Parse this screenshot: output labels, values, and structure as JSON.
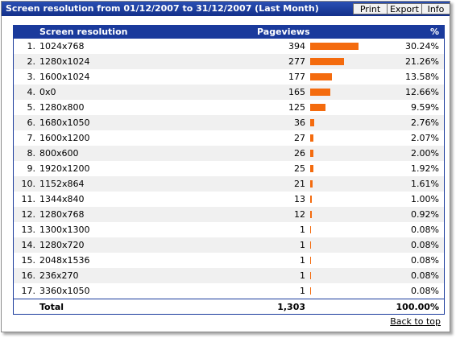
{
  "window": {
    "title": "Screen resolution from 01/12/2007 to 31/12/2007 (Last Month)",
    "buttons": {
      "print": "Print",
      "export": "Export",
      "info": "Info"
    }
  },
  "table": {
    "headers": {
      "resolution": "Screen resolution",
      "pageviews": "Pageviews",
      "percent": "%"
    },
    "bar_color": "#f46b0e",
    "header_color": "#1a3a9c",
    "rows": [
      {
        "index": "1.",
        "resolution": "1024x768",
        "pageviews": "394",
        "percent": "30.24%",
        "value": 394
      },
      {
        "index": "2.",
        "resolution": "1280x1024",
        "pageviews": "277",
        "percent": "21.26%",
        "value": 277
      },
      {
        "index": "3.",
        "resolution": "1600x1024",
        "pageviews": "177",
        "percent": "13.58%",
        "value": 177
      },
      {
        "index": "4.",
        "resolution": "0x0",
        "pageviews": "165",
        "percent": "12.66%",
        "value": 165
      },
      {
        "index": "5.",
        "resolution": "1280x800",
        "pageviews": "125",
        "percent": "9.59%",
        "value": 125
      },
      {
        "index": "6.",
        "resolution": "1680x1050",
        "pageviews": "36",
        "percent": "2.76%",
        "value": 36
      },
      {
        "index": "7.",
        "resolution": "1600x1200",
        "pageviews": "27",
        "percent": "2.07%",
        "value": 27
      },
      {
        "index": "8.",
        "resolution": "800x600",
        "pageviews": "26",
        "percent": "2.00%",
        "value": 26
      },
      {
        "index": "9.",
        "resolution": "1920x1200",
        "pageviews": "25",
        "percent": "1.92%",
        "value": 25
      },
      {
        "index": "10.",
        "resolution": "1152x864",
        "pageviews": "21",
        "percent": "1.61%",
        "value": 21
      },
      {
        "index": "11.",
        "resolution": "1344x840",
        "pageviews": "13",
        "percent": "1.00%",
        "value": 13
      },
      {
        "index": "12.",
        "resolution": "1280x768",
        "pageviews": "12",
        "percent": "0.92%",
        "value": 12
      },
      {
        "index": "13.",
        "resolution": "1300x1300",
        "pageviews": "1",
        "percent": "0.08%",
        "value": 1
      },
      {
        "index": "14.",
        "resolution": "1280x720",
        "pageviews": "1",
        "percent": "0.08%",
        "value": 1
      },
      {
        "index": "15.",
        "resolution": "2048x1536",
        "pageviews": "1",
        "percent": "0.08%",
        "value": 1
      },
      {
        "index": "16.",
        "resolution": "236x270",
        "pageviews": "1",
        "percent": "0.08%",
        "value": 1
      },
      {
        "index": "17.",
        "resolution": "3360x1050",
        "pageviews": "1",
        "percent": "0.08%",
        "value": 1
      }
    ],
    "total": {
      "label": "Total",
      "pageviews": "1,303",
      "percent": "100.00%"
    }
  },
  "footer": {
    "back_to_top": "Back to top"
  }
}
